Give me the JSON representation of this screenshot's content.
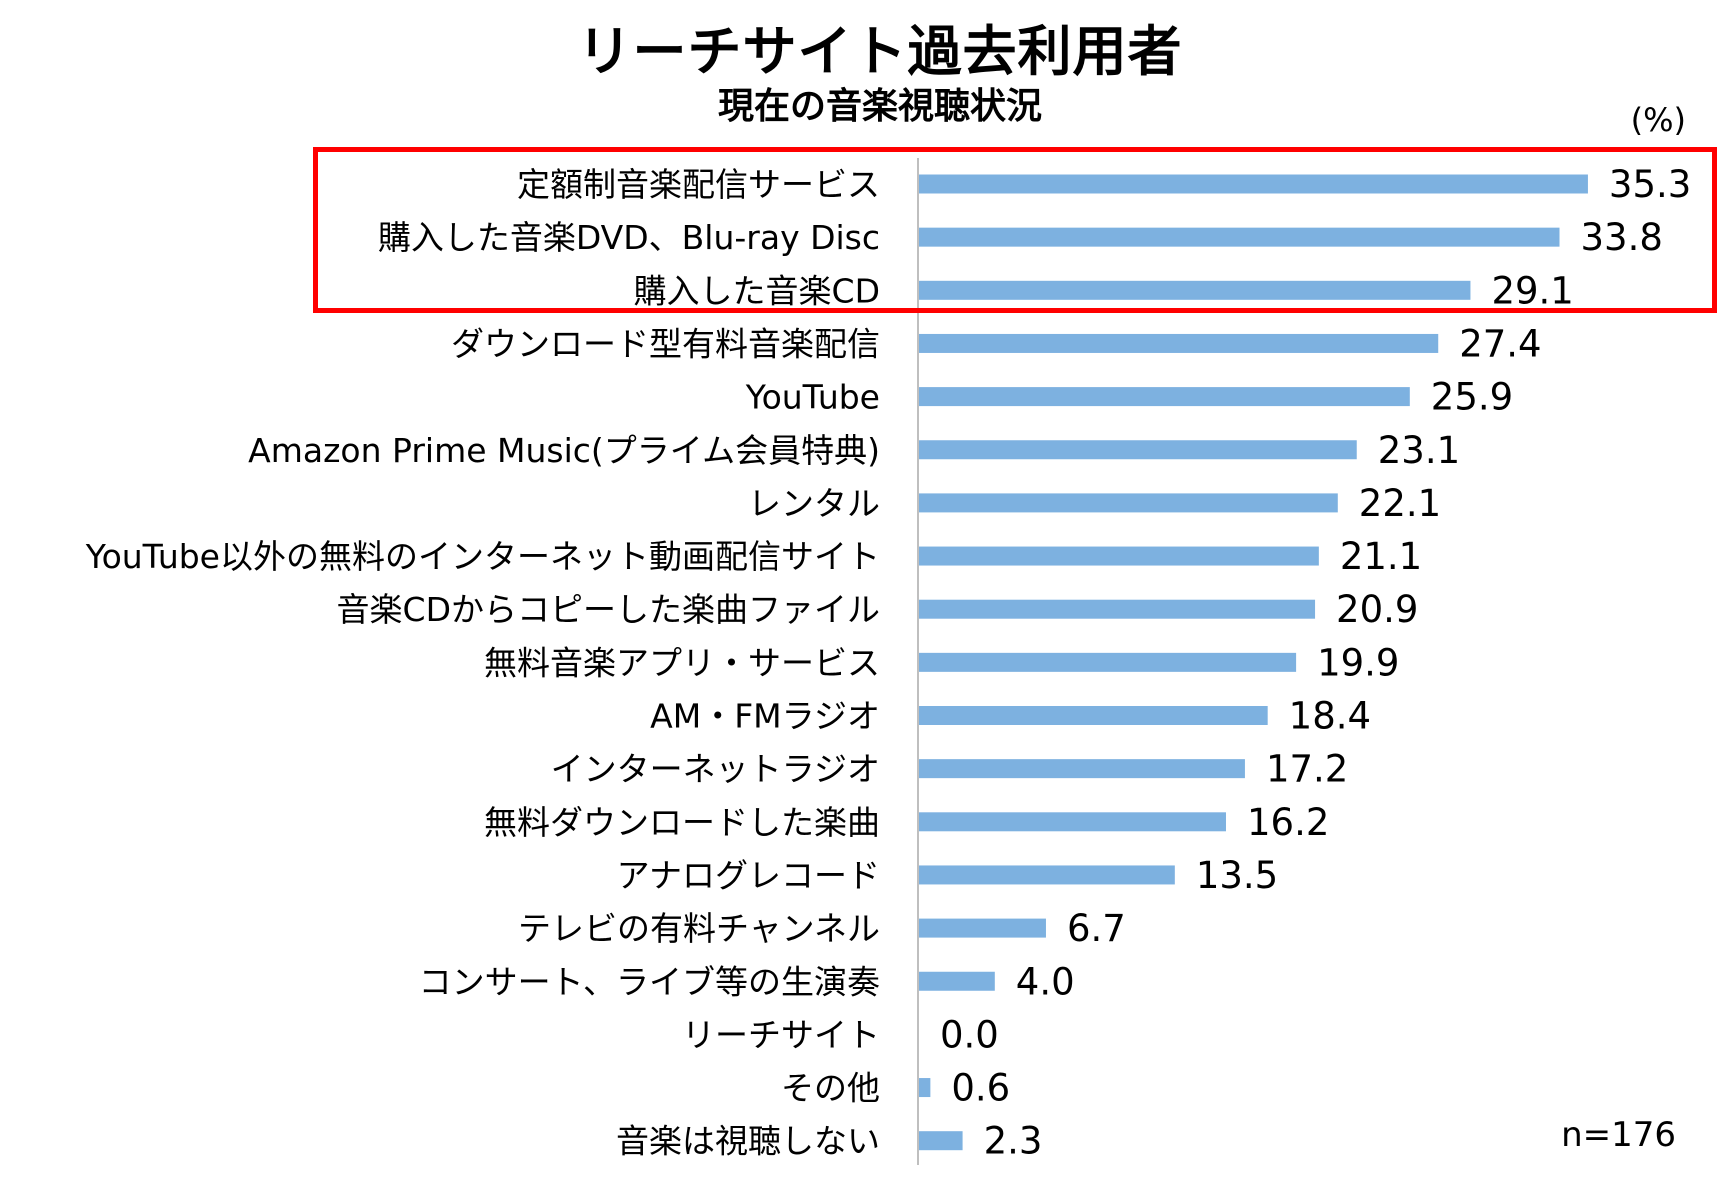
{
  "title": "リーチサイト過去利用者",
  "subtitle": "現在の音楽視聴状況",
  "unit_label": "(%)",
  "sample_note": "n=176",
  "highlight_color": "#ff0000",
  "bar_color": "#7db1e0",
  "chart_data": {
    "type": "bar",
    "orientation": "horizontal",
    "categories": [
      "定額制音楽配信サービス",
      "購入した音楽DVD、Blu-ray Disc",
      "購入した音楽CD",
      "ダウンロード型有料音楽配信",
      "YouTube",
      "Amazon Prime Music(プライム会員特典)",
      "レンタル",
      "YouTube以外の無料のインターネット動画配信サイト",
      "音楽CDからコピーした楽曲ファイル",
      "無料音楽アプリ・サービス",
      "AM・FMラジオ",
      "インターネットラジオ",
      "無料ダウンロードした楽曲",
      "アナログレコード",
      "テレビの有料チャンネル",
      "コンサート、ライブ等の生演奏",
      "リーチサイト",
      "その他",
      "音楽は視聴しない"
    ],
    "values": [
      35.3,
      33.8,
      29.1,
      27.4,
      25.9,
      23.1,
      22.1,
      21.1,
      20.9,
      19.9,
      18.4,
      17.2,
      16.2,
      13.5,
      6.7,
      4.0,
      0.0,
      0.6,
      2.3
    ],
    "value_labels": [
      "35.3",
      "33.8",
      "29.1",
      "27.4",
      "25.9",
      "23.1",
      "22.1",
      "21.1",
      "20.9",
      "19.9",
      "18.4",
      "17.2",
      "16.2",
      "13.5",
      "6.7",
      "4.0",
      "0.0",
      "0.6",
      "2.3"
    ],
    "highlighted_categories": [
      0,
      1,
      2
    ],
    "xlim": [
      0,
      40
    ],
    "grid": false,
    "legend": "none"
  }
}
